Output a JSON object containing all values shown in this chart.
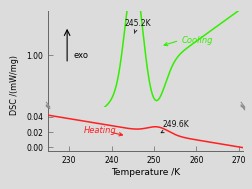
{
  "x_min": 225,
  "x_max": 271,
  "x_ticks": [
    230,
    240,
    250,
    260,
    270
  ],
  "xlabel": "Temperature /K",
  "ylabel": "DSC /(mW/mg)",
  "bg_color": "#dcdcdc",
  "cooling_color": "#33ee00",
  "heating_color": "#ff2020",
  "annotation_color": "#111111",
  "cooling_label": "Cooling",
  "heating_label": "Heating",
  "peak_cooling_T": 245.2,
  "peak_heating_T": 249.6,
  "exo_label": "exo",
  "upper_yticks": [
    1.0
  ],
  "upper_ylim": [
    0.82,
    1.15
  ],
  "lower_yticks": [
    0.0,
    0.02,
    0.04
  ],
  "lower_ylim": [
    -0.005,
    0.052
  ]
}
